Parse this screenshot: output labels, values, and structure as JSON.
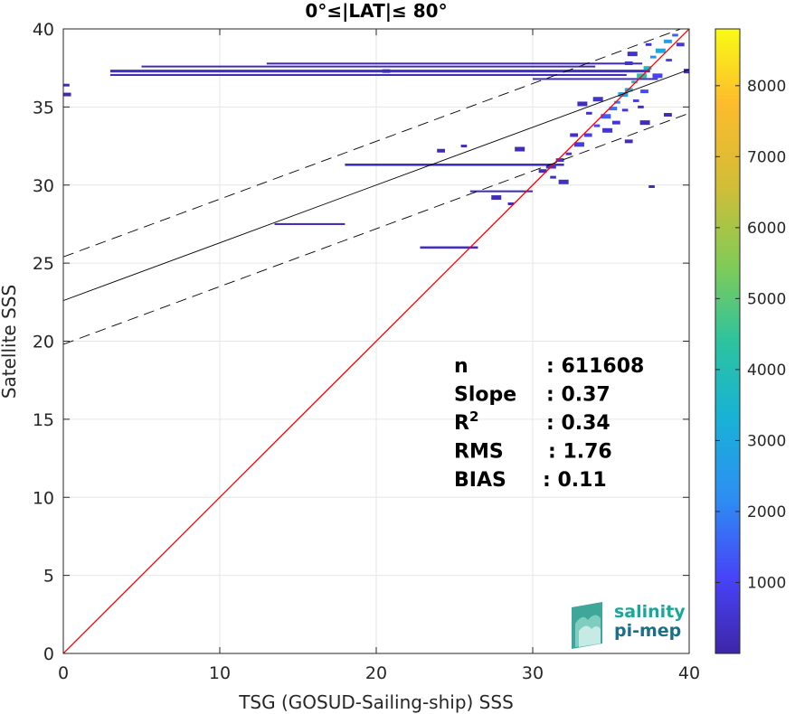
{
  "chart_data": {
    "type": "heatmap",
    "title": "0°≤|LAT|≤ 80°",
    "xlabel": "TSG (GOSUD-Sailing-ship) SSS",
    "ylabel": "Satellite SSS",
    "xlim": [
      0,
      40
    ],
    "ylim": [
      0,
      40
    ],
    "xticks": [
      "0",
      "10",
      "20",
      "30",
      "40"
    ],
    "yticks": [
      "0",
      "5",
      "10",
      "15",
      "20",
      "25",
      "30",
      "35",
      "40"
    ],
    "grid": true,
    "colorbar": {
      "range": [
        0,
        8800
      ],
      "ticks": [
        "1000",
        "2000",
        "3000",
        "4000",
        "5000",
        "6000",
        "7000",
        "8000"
      ],
      "tick_values": [
        1000,
        2000,
        3000,
        4000,
        5000,
        6000,
        7000,
        8000
      ],
      "colormap": [
        "#3e26a8",
        "#4743f8",
        "#2d8ff3",
        "#18b2d5",
        "#2dc39e",
        "#80cb57",
        "#d3bd37",
        "#fdbb2d",
        "#f9fb15"
      ]
    },
    "lines": {
      "identity": {
        "slope": 1,
        "intercept": 0,
        "color": "#ff0000"
      },
      "fit": {
        "slope": 0.37,
        "intercept": 22.6,
        "color": "#000000"
      },
      "fit_upper": {
        "slope": 0.37,
        "intercept": 25.4,
        "style": "dashed"
      },
      "fit_lower": {
        "slope": 0.37,
        "intercept": 19.8,
        "style": "dashed"
      }
    },
    "density_segments": [
      {
        "x0": 3.0,
        "x1": 37.5,
        "y": 37.3,
        "w": 0.18,
        "level": 400
      },
      {
        "x0": 3.0,
        "x1": 36.0,
        "y": 37.05,
        "w": 0.12,
        "level": 250
      },
      {
        "x0": 5.0,
        "x1": 34.0,
        "y": 37.6,
        "w": 0.1,
        "level": 200
      },
      {
        "x0": 13.0,
        "x1": 37.0,
        "y": 37.8,
        "w": 0.08,
        "level": 150
      },
      {
        "x0": 30.0,
        "x1": 38.0,
        "y": 36.8,
        "w": 0.1,
        "level": 300
      },
      {
        "x0": 18.0,
        "x1": 32.0,
        "y": 31.3,
        "w": 0.15,
        "level": 300
      },
      {
        "x0": 26.0,
        "x1": 30.0,
        "y": 29.6,
        "w": 0.12,
        "level": 300
      },
      {
        "x0": 22.8,
        "x1": 26.5,
        "y": 26.0,
        "w": 0.15,
        "level": 350
      },
      {
        "x0": 13.5,
        "x1": 18.0,
        "y": 27.5,
        "w": 0.12,
        "level": 250
      }
    ],
    "density_points": [
      {
        "x": 39.0,
        "y": 39.6,
        "level": 1500
      },
      {
        "x": 38.5,
        "y": 39.2,
        "level": 2500
      },
      {
        "x": 38.0,
        "y": 38.6,
        "level": 3000
      },
      {
        "x": 37.6,
        "y": 38.2,
        "level": 2200
      },
      {
        "x": 37.2,
        "y": 37.5,
        "level": 3500
      },
      {
        "x": 36.8,
        "y": 37.0,
        "level": 4200
      },
      {
        "x": 36.4,
        "y": 36.6,
        "level": 3800
      },
      {
        "x": 36.0,
        "y": 36.1,
        "level": 3200
      },
      {
        "x": 35.6,
        "y": 35.8,
        "level": 2800
      },
      {
        "x": 35.3,
        "y": 35.3,
        "level": 2000
      },
      {
        "x": 35.0,
        "y": 34.9,
        "level": 1800
      },
      {
        "x": 34.5,
        "y": 34.4,
        "level": 1500
      },
      {
        "x": 34.0,
        "y": 33.8,
        "level": 1200
      },
      {
        "x": 33.4,
        "y": 33.2,
        "level": 1000
      },
      {
        "x": 32.8,
        "y": 32.6,
        "level": 800
      },
      {
        "x": 32.2,
        "y": 32.0,
        "level": 700
      },
      {
        "x": 31.6,
        "y": 31.6,
        "level": 600
      },
      {
        "x": 31.0,
        "y": 31.2,
        "level": 500
      },
      {
        "x": 35.8,
        "y": 34.8,
        "level": 700
      },
      {
        "x": 35.2,
        "y": 34.0,
        "level": 600
      },
      {
        "x": 34.6,
        "y": 33.5,
        "level": 600
      },
      {
        "x": 36.5,
        "y": 35.4,
        "level": 900
      },
      {
        "x": 37.0,
        "y": 36.0,
        "level": 1200
      },
      {
        "x": 37.8,
        "y": 37.0,
        "level": 1100
      },
      {
        "x": 38.6,
        "y": 38.0,
        "level": 900
      },
      {
        "x": 39.3,
        "y": 39.0,
        "level": 700
      },
      {
        "x": 34.0,
        "y": 35.5,
        "level": 500
      },
      {
        "x": 33.5,
        "y": 34.6,
        "level": 400
      },
      {
        "x": 36.0,
        "y": 37.8,
        "level": 500
      },
      {
        "x": 36.2,
        "y": 38.4,
        "level": 450
      },
      {
        "x": 37.3,
        "y": 39.0,
        "level": 400
      },
      {
        "x": 32.5,
        "y": 33.2,
        "level": 400
      },
      {
        "x": 31.8,
        "y": 30.2,
        "level": 400
      },
      {
        "x": 31.2,
        "y": 30.5,
        "level": 350
      },
      {
        "x": 30.5,
        "y": 30.9,
        "level": 300
      },
      {
        "x": 29.0,
        "y": 32.3,
        "level": 250
      },
      {
        "x": 25.5,
        "y": 32.5,
        "level": 250
      },
      {
        "x": 24.0,
        "y": 32.2,
        "level": 200
      },
      {
        "x": 27.5,
        "y": 29.2,
        "level": 250
      },
      {
        "x": 28.5,
        "y": 28.8,
        "level": 200
      },
      {
        "x": 36.0,
        "y": 32.8,
        "level": 250
      },
      {
        "x": 37.0,
        "y": 34.0,
        "level": 250
      },
      {
        "x": 36.8,
        "y": 35.0,
        "level": 300
      },
      {
        "x": 38.5,
        "y": 34.5,
        "level": 200
      },
      {
        "x": 33.0,
        "y": 35.2,
        "level": 300
      },
      {
        "x": 0.1,
        "y": 36.4,
        "level": 200
      },
      {
        "x": 0.1,
        "y": 35.8,
        "level": 200
      },
      {
        "x": 39.8,
        "y": 37.3,
        "level": 250
      },
      {
        "x": 37.5,
        "y": 29.9,
        "level": 200
      },
      {
        "x": 20.5,
        "y": 37.3,
        "level": 300
      }
    ],
    "stats": [
      {
        "label": "n",
        "sep": ": ",
        "value": "611608"
      },
      {
        "label": "Slope",
        "sep": ": ",
        "value": "0.37"
      },
      {
        "label": "R",
        "sup": "2",
        "sep": ": ",
        "value": "0.34"
      },
      {
        "label": "RMS",
        "sep": ": ",
        "value": "1.76"
      },
      {
        "label": "BIAS",
        "sep": ": ",
        "value": "0.11"
      }
    ]
  },
  "logo": {
    "line1": "salinity",
    "line2": "pi-mep",
    "color1": "#1aa79a",
    "color2": "#1b6f88"
  }
}
